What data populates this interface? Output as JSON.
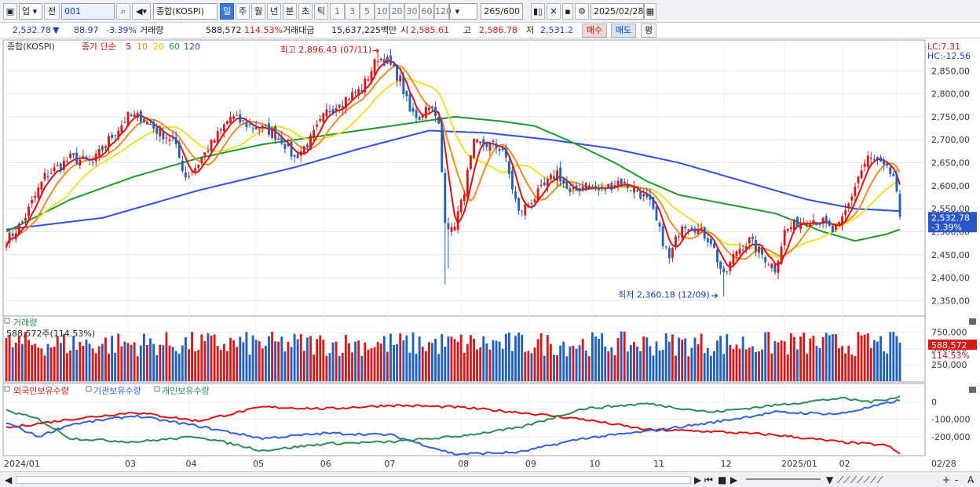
{
  "toolbar": {
    "market": "업",
    "prev_label": "전",
    "code": "001",
    "name": "종합(KOSPI)",
    "periods": [
      "일",
      "주",
      "월",
      "년",
      "분",
      "초",
      "틱"
    ],
    "active_period": "일",
    "intervals": [
      "1",
      "3",
      "5",
      "10",
      "20",
      "30",
      "60",
      "120"
    ],
    "count": "265",
    "total": "/600",
    "date": "2025/02/28"
  },
  "quote": {
    "price": "2,532.78",
    "change_arrow": "▼",
    "change": "88.97",
    "change_pct": "-3.39%",
    "volume_label": "거래량",
    "volume": "588,572",
    "volume_pct": "114.53%",
    "amount_label": "거래대금",
    "amount": "15,637,225백만",
    "open_label": "시",
    "open": "2,585.61",
    "high_label": "고",
    "high": "2,586.78",
    "low_label": "저",
    "low": "2,531.2",
    "buy_label": "매수",
    "sell_label": "매도",
    "eval_label": "평"
  },
  "price_panel": {
    "title": "종합(KOSPI)",
    "ma_label": "종가 단순",
    "ma_periods": [
      "5",
      "10",
      "20",
      "60",
      "120"
    ],
    "lc": "LC:7.31",
    "hc": "HC:-12.56",
    "high_annotation": "최고 2,896.43 (07/11)",
    "low_annotation": "최저 2,360.18 (12/09)",
    "current_price_tag": "2,532.78",
    "current_pct_tag": "-3.39%"
  },
  "volume_panel": {
    "title": "거래량",
    "current": "588,572주(114.53%)",
    "current_tag": "588,572",
    "current_pct_tag": "114.53%"
  },
  "holdings_panel": {
    "series": [
      "외국인보유수량",
      "기관보유수량",
      "개인보유수량"
    ]
  },
  "colors": {
    "up": "#d81818",
    "down": "#1f5fc0",
    "ma5": "#e01010",
    "ma10": "#f08c1e",
    "ma20": "#f0e02a",
    "ma60": "#1e9a2e",
    "ma120": "#3050e0",
    "foreign": "#e01010",
    "institution": "#3060e0",
    "individual": "#2e8a58"
  },
  "chart_data": [
    {
      "type": "candlestick",
      "title": "종합(KOSPI)",
      "ylim": [
        2320,
        2900
      ],
      "y_ticks": [
        "2,850,00",
        "2,800,00",
        "2,750,00",
        "2,700,00",
        "2,650,00",
        "2,600,00",
        "2,550,00",
        "2,500,00",
        "2,450,00",
        "2,400,00",
        "2,350,00"
      ],
      "y_tick_values": [
        2850,
        2800,
        2750,
        2700,
        2650,
        2600,
        2550,
        2500,
        2450,
        2400,
        2350
      ],
      "x_labels": [
        "2024/01",
        "03",
        "04",
        "05",
        "06",
        "07",
        "08",
        "09",
        "10",
        "11",
        "12",
        "2025/01",
        "02",
        "02/28"
      ],
      "x_label_index": [
        0,
        38,
        57,
        78,
        99,
        119,
        142,
        163,
        183,
        203,
        224,
        243,
        261,
        278
      ],
      "n": 280,
      "close_keypoints": [
        [
          0,
          2480
        ],
        [
          5,
          2520
        ],
        [
          12,
          2620
        ],
        [
          20,
          2660
        ],
        [
          27,
          2650
        ],
        [
          32,
          2700
        ],
        [
          38,
          2750
        ],
        [
          42,
          2750
        ],
        [
          47,
          2720
        ],
        [
          52,
          2700
        ],
        [
          56,
          2620
        ],
        [
          59,
          2640
        ],
        [
          63,
          2680
        ],
        [
          70,
          2750
        ],
        [
          76,
          2730
        ],
        [
          82,
          2720
        ],
        [
          86,
          2700
        ],
        [
          90,
          2660
        ],
        [
          95,
          2700
        ],
        [
          100,
          2760
        ],
        [
          106,
          2790
        ],
        [
          111,
          2810
        ],
        [
          116,
          2880
        ],
        [
          119,
          2870
        ],
        [
          123,
          2830
        ],
        [
          126,
          2760
        ],
        [
          129,
          2750
        ],
        [
          132,
          2780
        ],
        [
          135,
          2730
        ],
        [
          137,
          2530
        ],
        [
          139,
          2500
        ],
        [
          142,
          2560
        ],
        [
          146,
          2690
        ],
        [
          150,
          2690
        ],
        [
          155,
          2680
        ],
        [
          160,
          2540
        ],
        [
          163,
          2560
        ],
        [
          167,
          2590
        ],
        [
          172,
          2630
        ],
        [
          176,
          2580
        ],
        [
          180,
          2600
        ],
        [
          186,
          2590
        ],
        [
          191,
          2610
        ],
        [
          197,
          2590
        ],
        [
          201,
          2560
        ],
        [
          205,
          2480
        ],
        [
          207,
          2440
        ],
        [
          211,
          2520
        ],
        [
          215,
          2510
        ],
        [
          220,
          2480
        ],
        [
          224,
          2400
        ],
        [
          228,
          2460
        ],
        [
          232,
          2480
        ],
        [
          236,
          2450
        ],
        [
          240,
          2420
        ],
        [
          243,
          2500
        ],
        [
          247,
          2520
        ],
        [
          251,
          2530
        ],
        [
          255,
          2520
        ],
        [
          258,
          2500
        ],
        [
          260,
          2510
        ],
        [
          263,
          2560
        ],
        [
          266,
          2620
        ],
        [
          269,
          2660
        ],
        [
          272,
          2650
        ],
        [
          277,
          2621
        ],
        [
          279,
          2532
        ]
      ],
      "ma120_keypoints": [
        [
          0,
          2505
        ],
        [
          30,
          2530
        ],
        [
          60,
          2590
        ],
        [
          90,
          2640
        ],
        [
          110,
          2680
        ],
        [
          132,
          2720
        ],
        [
          150,
          2715
        ],
        [
          170,
          2700
        ],
        [
          190,
          2680
        ],
        [
          210,
          2650
        ],
        [
          230,
          2610
        ],
        [
          250,
          2570
        ],
        [
          265,
          2550
        ],
        [
          279,
          2545
        ]
      ],
      "ma60_keypoints": [
        [
          0,
          2500
        ],
        [
          20,
          2570
        ],
        [
          40,
          2620
        ],
        [
          60,
          2660
        ],
        [
          80,
          2690
        ],
        [
          100,
          2710
        ],
        [
          120,
          2730
        ],
        [
          140,
          2750
        ],
        [
          155,
          2740
        ],
        [
          165,
          2730
        ],
        [
          175,
          2700
        ],
        [
          190,
          2650
        ],
        [
          200,
          2610
        ],
        [
          210,
          2580
        ],
        [
          225,
          2560
        ],
        [
          240,
          2540
        ],
        [
          255,
          2500
        ],
        [
          265,
          2480
        ],
        [
          275,
          2495
        ],
        [
          279,
          2505
        ]
      ],
      "high": {
        "value": 2896.43,
        "date": "07/11",
        "index": 116
      },
      "low": {
        "value": 2360.18,
        "date": "12/09",
        "index": 224
      },
      "last_close": 2532.78
    },
    {
      "type": "bar",
      "title": "거래량",
      "ylim": [
        0,
        900000
      ],
      "y_ticks": [
        "750,000",
        "500,000",
        "250,000"
      ],
      "y_tick_values": [
        750000,
        500000,
        250000
      ],
      "last": 588572
    },
    {
      "type": "line",
      "title": "외국인보유수량 / 기관보유수량 / 개인보유수량",
      "ylim": [
        -300000,
        60000
      ],
      "y_ticks": [
        "0",
        "-100,000",
        "-200,000"
      ],
      "y_tick_values": [
        0,
        -100000,
        -200000
      ],
      "series": [
        {
          "name": "외국인보유수량",
          "keypoints": [
            [
              0,
              -150000
            ],
            [
              20,
              -100000
            ],
            [
              40,
              -60000
            ],
            [
              60,
              -110000
            ],
            [
              80,
              -30000
            ],
            [
              100,
              -40000
            ],
            [
              120,
              -20000
            ],
            [
              140,
              -30000
            ],
            [
              160,
              -60000
            ],
            [
              180,
              -100000
            ],
            [
              200,
              -160000
            ],
            [
              220,
              -170000
            ],
            [
              240,
              -190000
            ],
            [
              260,
              -230000
            ],
            [
              275,
              -250000
            ],
            [
              279,
              -300000
            ]
          ]
        },
        {
          "name": "기관보유수량",
          "keypoints": [
            [
              0,
              -120000
            ],
            [
              10,
              -200000
            ],
            [
              20,
              -130000
            ],
            [
              40,
              -80000
            ],
            [
              60,
              -140000
            ],
            [
              80,
              -210000
            ],
            [
              100,
              -180000
            ],
            [
              120,
              -190000
            ],
            [
              140,
              -300000
            ],
            [
              160,
              -290000
            ],
            [
              180,
              -210000
            ],
            [
              200,
              -170000
            ],
            [
              220,
              -120000
            ],
            [
              240,
              -60000
            ],
            [
              260,
              -70000
            ],
            [
              270,
              -30000
            ],
            [
              279,
              10000
            ]
          ]
        },
        {
          "name": "개인보유수량",
          "keypoints": [
            [
              0,
              -50000
            ],
            [
              10,
              -100000
            ],
            [
              20,
              -210000
            ],
            [
              40,
              -230000
            ],
            [
              60,
              -200000
            ],
            [
              80,
              -280000
            ],
            [
              100,
              -240000
            ],
            [
              120,
              -230000
            ],
            [
              140,
              -200000
            ],
            [
              160,
              -150000
            ],
            [
              180,
              -40000
            ],
            [
              200,
              -10000
            ],
            [
              220,
              -60000
            ],
            [
              240,
              -20000
            ],
            [
              260,
              20000
            ],
            [
              270,
              0
            ],
            [
              279,
              30000
            ]
          ]
        }
      ]
    }
  ],
  "bottombar": {
    "buttons": [
      "◀",
      "▶",
      "⏮",
      "■",
      "▶",
      "▼",
      "+",
      "-",
      "A"
    ]
  }
}
